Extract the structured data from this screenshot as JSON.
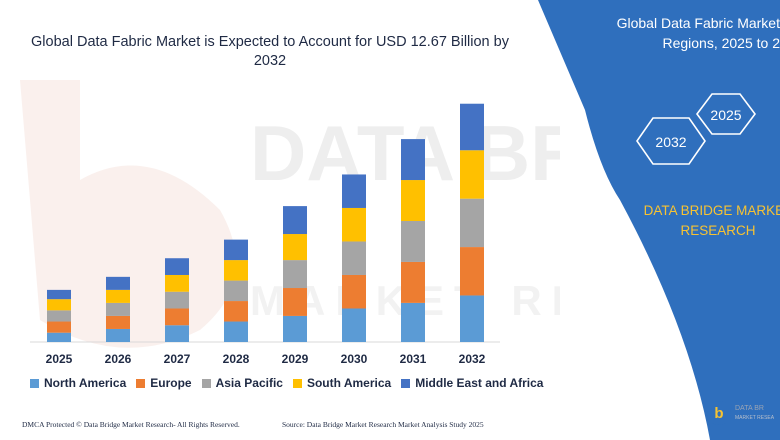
{
  "chart_data": {
    "type": "bar",
    "stacked": true,
    "title": "Global Data Fabric Market is Expected to Account for USD 12.67 Billion by 2032",
    "xlabel": "",
    "ylabel": "",
    "ylim": [
      0,
      13
    ],
    "grid": false,
    "legend_position": "bottom",
    "categories": [
      "2025",
      "2026",
      "2027",
      "2028",
      "2029",
      "2030",
      "2031",
      "2032"
    ],
    "series": [
      {
        "name": "North America",
        "color": "#5b9bd5",
        "values": [
          0.5,
          0.7,
          0.9,
          1.1,
          1.4,
          1.8,
          2.1,
          2.5
        ]
      },
      {
        "name": "Europe",
        "color": "#ed7d31",
        "values": [
          0.6,
          0.7,
          0.9,
          1.1,
          1.5,
          1.8,
          2.2,
          2.6
        ]
      },
      {
        "name": "Asia Pacific",
        "color": "#a5a5a5",
        "values": [
          0.6,
          0.7,
          0.9,
          1.1,
          1.5,
          1.8,
          2.2,
          2.6
        ]
      },
      {
        "name": "South America",
        "color": "#ffc000",
        "values": [
          0.6,
          0.7,
          0.9,
          1.1,
          1.4,
          1.8,
          2.2,
          2.6
        ]
      },
      {
        "name": "Middle East and Africa",
        "color": "#4472c4",
        "values": [
          0.5,
          0.7,
          0.9,
          1.1,
          1.5,
          1.8,
          2.2,
          2.5
        ]
      }
    ]
  },
  "panel": {
    "title_line1": "Global Data Fabric Market",
    "title_line2": "Regions, 2025 to 2",
    "hex_a": "2025",
    "hex_b": "2032",
    "brand_line1": "DATA BRIDGE MARKET",
    "brand_line2": "RESEARCH",
    "color": "#2f6fbd",
    "brand_color": "#f7c332"
  },
  "footer": {
    "left": "DMCA Protected © Data Bridge Market Research- All Rights Reserved.",
    "right": "Source: Data Bridge Market Research Market Analysis Study 2025"
  },
  "logo": {
    "mark": "b",
    "name_line1": "DATA BR",
    "name_line2": "MARKET RESEA"
  },
  "icons": [
    "hexagon-icon",
    "brand-logo-icon",
    "watermark-icon"
  ]
}
